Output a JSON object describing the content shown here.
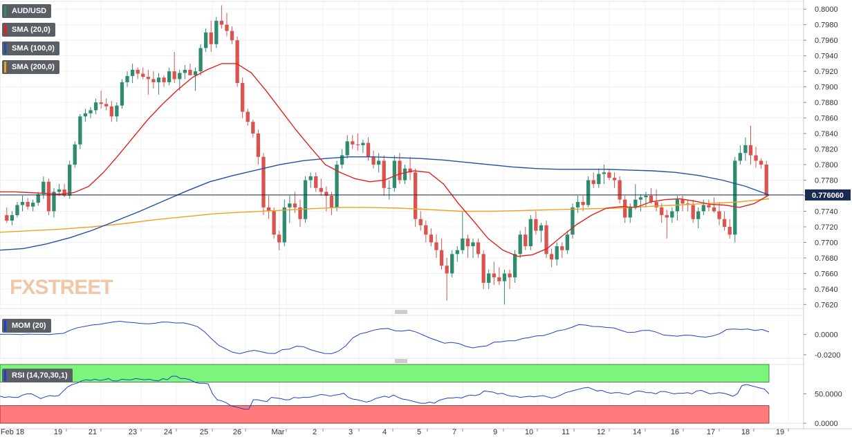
{
  "chart_data": {
    "type": "candlestick",
    "symbol": "AUD/USD",
    "price_axis": {
      "ticks": [
        "0.8000",
        "0.7980",
        "0.7960",
        "0.7940",
        "0.7920",
        "0.7900",
        "0.7880",
        "0.7860",
        "0.7840",
        "0.7820",
        "0.7800",
        "0.7780",
        "0.7760",
        "0.7740",
        "0.7720",
        "0.7700",
        "0.7680",
        "0.7660",
        "0.7640",
        "0.7620"
      ],
      "range": [
        0.7615,
        0.801
      ]
    },
    "last_price": "0.776060",
    "last_price_value": 0.7761,
    "x_axis_labels": [
      "Feb 18",
      "19",
      "21",
      "23",
      "24",
      "25",
      "26",
      "Mar",
      "2",
      "3",
      "4",
      "5",
      "7",
      "9",
      "10",
      "11",
      "12",
      "14",
      "16",
      "17",
      "18",
      "19"
    ],
    "indicators": {
      "sma20_label": "SMA (20,0)",
      "sma100_label": "SMA (100,0)",
      "sma200_label": "SMA (200,0)",
      "mom_label": "MOM (20)",
      "rsi_label": "RSI (14,70,30,1)"
    },
    "colors": {
      "up": "#2e8b6e",
      "down": "#d9534f",
      "sma20": "#e0221b",
      "sma100": "#1f4fa8",
      "sma200": "#f0a020",
      "mom_line": "#1d3fd1",
      "rsi_line": "#1d3fd1",
      "overbought": "#7cf57c",
      "oversold": "#ff7b7b",
      "label_bg": "#5a5f66"
    },
    "candles": [
      [
        0.7735,
        0.7745,
        0.7725,
        0.7728
      ],
      [
        0.7728,
        0.774,
        0.7722,
        0.7735
      ],
      [
        0.7735,
        0.7752,
        0.7732,
        0.7748
      ],
      [
        0.7748,
        0.776,
        0.774,
        0.7752
      ],
      [
        0.7752,
        0.7757,
        0.7742,
        0.7746
      ],
      [
        0.7746,
        0.7755,
        0.774,
        0.7751
      ],
      [
        0.7751,
        0.7765,
        0.7747,
        0.7762
      ],
      [
        0.7762,
        0.7785,
        0.7756,
        0.7778
      ],
      [
        0.7778,
        0.7782,
        0.7735,
        0.774
      ],
      [
        0.774,
        0.777,
        0.7732,
        0.7765
      ],
      [
        0.7765,
        0.7775,
        0.776,
        0.7768
      ],
      [
        0.7768,
        0.7775,
        0.7758,
        0.776
      ],
      [
        0.776,
        0.7805,
        0.7756,
        0.78
      ],
      [
        0.78,
        0.783,
        0.7796,
        0.7826
      ],
      [
        0.7826,
        0.7865,
        0.782,
        0.7862
      ],
      [
        0.7862,
        0.7872,
        0.7855,
        0.7866
      ],
      [
        0.7866,
        0.7874,
        0.786,
        0.787
      ],
      [
        0.787,
        0.7885,
        0.7865,
        0.788
      ],
      [
        0.788,
        0.7895,
        0.7872,
        0.7878
      ],
      [
        0.7878,
        0.7885,
        0.787,
        0.7875
      ],
      [
        0.7875,
        0.7882,
        0.7855,
        0.7862
      ],
      [
        0.7862,
        0.788,
        0.7855,
        0.7876
      ],
      [
        0.7876,
        0.791,
        0.7872,
        0.7906
      ],
      [
        0.7906,
        0.792,
        0.79,
        0.7914
      ],
      [
        0.7914,
        0.793,
        0.7905,
        0.7922
      ],
      [
        0.7922,
        0.7925,
        0.791,
        0.7917
      ],
      [
        0.7917,
        0.7925,
        0.791,
        0.7913
      ],
      [
        0.7913,
        0.7922,
        0.789,
        0.791
      ],
      [
        0.791,
        0.792,
        0.7898,
        0.7906
      ],
      [
        0.7906,
        0.7918,
        0.789,
        0.7912
      ],
      [
        0.7912,
        0.7915,
        0.79,
        0.7906
      ],
      [
        0.7906,
        0.7925,
        0.7902,
        0.792
      ],
      [
        0.792,
        0.7945,
        0.7905,
        0.791
      ],
      [
        0.791,
        0.7922,
        0.7895,
        0.7918
      ],
      [
        0.7918,
        0.7928,
        0.791,
        0.7922
      ],
      [
        0.7922,
        0.793,
        0.7915,
        0.7915
      ],
      [
        0.7915,
        0.7925,
        0.7895,
        0.792
      ],
      [
        0.792,
        0.7955,
        0.7915,
        0.795
      ],
      [
        0.795,
        0.7975,
        0.7945,
        0.797
      ],
      [
        0.797,
        0.7985,
        0.7945,
        0.7955
      ],
      [
        0.7955,
        0.799,
        0.795,
        0.7985
      ],
      [
        0.7985,
        0.8005,
        0.7975,
        0.798
      ],
      [
        0.798,
        0.7995,
        0.7965,
        0.7972
      ],
      [
        0.7972,
        0.7978,
        0.7955,
        0.796
      ],
      [
        0.796,
        0.7965,
        0.79,
        0.7905
      ],
      [
        0.7905,
        0.7912,
        0.786,
        0.7868
      ],
      [
        0.7868,
        0.7872,
        0.785,
        0.7855
      ],
      [
        0.7855,
        0.7858,
        0.7835,
        0.784
      ],
      [
        0.784,
        0.7845,
        0.78,
        0.781
      ],
      [
        0.781,
        0.7815,
        0.7735,
        0.7745
      ],
      [
        0.7745,
        0.776,
        0.773,
        0.774
      ],
      [
        0.774,
        0.7745,
        0.7705,
        0.771
      ],
      [
        0.771,
        0.7715,
        0.769,
        0.77
      ],
      [
        0.77,
        0.7755,
        0.7695,
        0.7745
      ],
      [
        0.7745,
        0.776,
        0.7725,
        0.775
      ],
      [
        0.775,
        0.7765,
        0.7738,
        0.7745
      ],
      [
        0.7745,
        0.7755,
        0.772,
        0.773
      ],
      [
        0.773,
        0.7785,
        0.7725,
        0.778
      ],
      [
        0.778,
        0.779,
        0.777,
        0.7785
      ],
      [
        0.7785,
        0.779,
        0.7765,
        0.777
      ],
      [
        0.777,
        0.7782,
        0.776,
        0.7765
      ],
      [
        0.7765,
        0.7772,
        0.774,
        0.776
      ],
      [
        0.776,
        0.7765,
        0.7735,
        0.7745
      ],
      [
        0.7745,
        0.7805,
        0.774,
        0.78
      ],
      [
        0.78,
        0.782,
        0.7795,
        0.7812
      ],
      [
        0.7812,
        0.7838,
        0.7808,
        0.783
      ],
      [
        0.783,
        0.7838,
        0.782,
        0.7826
      ],
      [
        0.7826,
        0.784,
        0.7818,
        0.7825
      ],
      [
        0.7825,
        0.7832,
        0.7815,
        0.7828
      ],
      [
        0.7828,
        0.7835,
        0.7805,
        0.781
      ],
      [
        0.781,
        0.7818,
        0.7795,
        0.78
      ],
      [
        0.78,
        0.7815,
        0.779,
        0.7805
      ],
      [
        0.7805,
        0.7812,
        0.776,
        0.777
      ],
      [
        0.777,
        0.778,
        0.7755,
        0.777
      ],
      [
        0.777,
        0.7812,
        0.7765,
        0.7805
      ],
      [
        0.7805,
        0.7815,
        0.7775,
        0.778
      ],
      [
        0.778,
        0.78,
        0.7775,
        0.7795
      ],
      [
        0.7795,
        0.781,
        0.778,
        0.779
      ],
      [
        0.779,
        0.7795,
        0.772,
        0.773
      ],
      [
        0.773,
        0.774,
        0.7715,
        0.7722
      ],
      [
        0.7722,
        0.7728,
        0.77,
        0.771
      ],
      [
        0.771,
        0.7718,
        0.7695,
        0.77
      ],
      [
        0.77,
        0.771,
        0.768,
        0.769
      ],
      [
        0.769,
        0.7705,
        0.7665,
        0.767
      ],
      [
        0.767,
        0.768,
        0.7625,
        0.766
      ],
      [
        0.766,
        0.769,
        0.7655,
        0.7685
      ],
      [
        0.7685,
        0.7695,
        0.7675,
        0.769
      ],
      [
        0.769,
        0.774,
        0.7685,
        0.7705
      ],
      [
        0.7705,
        0.771,
        0.768,
        0.7695
      ],
      [
        0.7695,
        0.7705,
        0.768,
        0.77
      ],
      [
        0.77,
        0.7705,
        0.768,
        0.7685
      ],
      [
        0.7685,
        0.769,
        0.764,
        0.7648
      ],
      [
        0.7648,
        0.7665,
        0.764,
        0.766
      ],
      [
        0.766,
        0.7675,
        0.7645,
        0.7655
      ],
      [
        0.7655,
        0.7668,
        0.7645,
        0.765
      ],
      [
        0.765,
        0.7665,
        0.762,
        0.766
      ],
      [
        0.766,
        0.7665,
        0.764,
        0.7655
      ],
      [
        0.7655,
        0.769,
        0.7648,
        0.7685
      ],
      [
        0.7685,
        0.7715,
        0.768,
        0.771
      ],
      [
        0.771,
        0.772,
        0.769,
        0.7695
      ],
      [
        0.7695,
        0.7735,
        0.769,
        0.773
      ],
      [
        0.773,
        0.774,
        0.771,
        0.7715
      ],
      [
        0.7715,
        0.7725,
        0.77,
        0.7722
      ],
      [
        0.7722,
        0.7728,
        0.768,
        0.7685
      ],
      [
        0.7685,
        0.7692,
        0.7668,
        0.7678
      ],
      [
        0.7678,
        0.77,
        0.767,
        0.7695
      ],
      [
        0.7695,
        0.77,
        0.768,
        0.769
      ],
      [
        0.769,
        0.7715,
        0.7685,
        0.771
      ],
      [
        0.771,
        0.775,
        0.7705,
        0.7745
      ],
      [
        0.7745,
        0.776,
        0.7738,
        0.7752
      ],
      [
        0.7752,
        0.776,
        0.774,
        0.7748
      ],
      [
        0.7748,
        0.7785,
        0.7745,
        0.778
      ],
      [
        0.778,
        0.779,
        0.777,
        0.7775
      ],
      [
        0.7775,
        0.7795,
        0.777,
        0.7788
      ],
      [
        0.7788,
        0.78,
        0.7775,
        0.779
      ],
      [
        0.779,
        0.7795,
        0.778,
        0.7783
      ],
      [
        0.7783,
        0.779,
        0.777,
        0.778
      ],
      [
        0.778,
        0.7785,
        0.775,
        0.7755
      ],
      [
        0.7755,
        0.776,
        0.7725,
        0.7732
      ],
      [
        0.7732,
        0.775,
        0.7725,
        0.7745
      ],
      [
        0.7745,
        0.7775,
        0.7742,
        0.7755
      ],
      [
        0.7755,
        0.7762,
        0.774,
        0.7758
      ],
      [
        0.7758,
        0.7765,
        0.7745,
        0.776
      ],
      [
        0.776,
        0.777,
        0.775,
        0.7752
      ],
      [
        0.7752,
        0.7768,
        0.774,
        0.7745
      ],
      [
        0.7745,
        0.775,
        0.7725,
        0.7735
      ],
      [
        0.7735,
        0.7742,
        0.7705,
        0.7732
      ],
      [
        0.7732,
        0.7745,
        0.7725,
        0.774
      ],
      [
        0.774,
        0.776,
        0.7728,
        0.7755
      ],
      [
        0.7755,
        0.776,
        0.774,
        0.775
      ],
      [
        0.775,
        0.7755,
        0.774,
        0.7748
      ],
      [
        0.7748,
        0.7755,
        0.7725,
        0.773
      ],
      [
        0.773,
        0.7745,
        0.7718,
        0.774
      ],
      [
        0.774,
        0.7755,
        0.7735,
        0.7748
      ],
      [
        0.7748,
        0.7755,
        0.774,
        0.7745
      ],
      [
        0.7745,
        0.7758,
        0.7738,
        0.774
      ],
      [
        0.774,
        0.7752,
        0.7722,
        0.773
      ],
      [
        0.773,
        0.774,
        0.7715,
        0.772
      ],
      [
        0.772,
        0.773,
        0.7705,
        0.771
      ],
      [
        0.771,
        0.781,
        0.77,
        0.7805
      ],
      [
        0.7805,
        0.7825,
        0.78,
        0.7815
      ],
      [
        0.7815,
        0.7835,
        0.7805,
        0.7825
      ],
      [
        0.7825,
        0.785,
        0.78,
        0.7812
      ],
      [
        0.7812,
        0.7823,
        0.7796,
        0.7805
      ],
      [
        0.7805,
        0.7808,
        0.7795,
        0.78
      ],
      [
        0.78,
        0.7805,
        0.7758,
        0.7761
      ]
    ],
    "sma20": [
      0.7765,
      0.7765,
      0.7764,
      0.7763,
      0.7762,
      0.7764,
      0.7772,
      0.779,
      0.7812,
      0.7835,
      0.7858,
      0.7878,
      0.7896,
      0.7912,
      0.7922,
      0.793,
      0.793,
      0.7918,
      0.7895,
      0.787,
      0.7845,
      0.7822,
      0.78,
      0.779,
      0.7782,
      0.7778,
      0.778,
      0.7788,
      0.7792,
      0.779,
      0.7775,
      0.775,
      0.7728,
      0.7705,
      0.769,
      0.7682,
      0.7684,
      0.7692,
      0.7708,
      0.7723,
      0.7735,
      0.7744,
      0.7746,
      0.7745,
      0.7752,
      0.7755,
      0.7756,
      0.7753,
      0.7749,
      0.7748,
      0.7745,
      0.775,
      0.7761
    ],
    "sma100": [
      0.769,
      0.7692,
      0.7698,
      0.7706,
      0.7716,
      0.7728,
      0.774,
      0.7753,
      0.7766,
      0.7778,
      0.7786,
      0.7793,
      0.78,
      0.7805,
      0.7808,
      0.781,
      0.781,
      0.7809,
      0.7808,
      0.7806,
      0.7803,
      0.78,
      0.7797,
      0.7795,
      0.7794,
      0.7794,
      0.7794,
      0.7793,
      0.7792,
      0.779,
      0.7786,
      0.778,
      0.7772,
      0.7761
    ],
    "sma200": [
      0.7713,
      0.7715,
      0.7717,
      0.772,
      0.7724,
      0.7729,
      0.7733,
      0.7737,
      0.7739,
      0.7741,
      0.7743,
      0.7745,
      0.7745,
      0.7744,
      0.7742,
      0.774,
      0.774,
      0.7741,
      0.7742,
      0.7743,
      0.7744,
      0.7746,
      0.7748,
      0.775,
      0.7752,
      0.7756
    ],
    "mom": {
      "ticks": [
        "0.0000",
        "-0.0200"
      ],
      "range": [
        -0.0235,
        0.019
      ],
      "values": [
        0.0002,
        0.0003,
        0.0002,
        0.0,
        0.0004,
        0.0002,
        0.0002,
        0.0,
        0.0006,
        0.0012,
        0.0044,
        0.0068,
        0.008,
        0.0094,
        0.01,
        0.0112,
        0.0124,
        0.0132,
        0.0122,
        0.0118,
        0.011,
        0.0106,
        0.0112,
        0.0124,
        0.0122,
        0.0114,
        0.0116,
        0.01,
        0.0078,
        0.0026,
        -0.0044,
        -0.0106,
        -0.0142,
        -0.0176,
        -0.019,
        -0.017,
        -0.0156,
        -0.017,
        -0.0186,
        -0.0188,
        -0.015,
        -0.0144,
        -0.0116,
        -0.012,
        -0.015,
        -0.017,
        -0.0188,
        -0.019,
        -0.0164,
        -0.0112,
        -0.0034,
        0.0006,
        0.0022,
        0.0044,
        0.0056,
        0.006,
        0.0038,
        0.0034,
        0.0044,
        0.0024,
        -0.0006,
        -0.0036,
        -0.006,
        -0.0086,
        -0.0078,
        -0.0088,
        -0.0116,
        -0.0132,
        -0.012,
        -0.0112,
        -0.0076,
        -0.0072,
        -0.0062,
        -0.0062,
        -0.004,
        -0.003,
        -0.0014,
        -0.001,
        0.001,
        0.0036,
        0.0048,
        0.007,
        0.0098,
        0.0094,
        0.008,
        0.0078,
        0.007,
        0.0066,
        0.0042,
        0.002,
        0.0024,
        0.004,
        0.0042,
        0.0024,
        -0.0004,
        -0.001,
        -0.0016,
        -0.0006,
        -0.0008,
        -0.002,
        -0.0026,
        -0.0014,
        0.0008,
        0.005,
        0.0054,
        0.005,
        0.0054,
        0.004,
        0.005,
        0.0026
      ]
    },
    "rsi": {
      "ticks": [
        "50.0000",
        "0.0000"
      ],
      "range": [
        0,
        100
      ],
      "overbought": 70,
      "oversold": 30,
      "values": [
        46,
        44,
        45,
        44,
        44,
        48,
        50,
        50,
        46,
        42,
        45,
        47,
        46,
        47,
        55,
        62,
        66,
        68,
        72,
        74,
        73,
        75,
        73,
        74,
        76,
        72,
        72,
        75,
        74,
        74,
        76,
        75,
        74,
        75,
        73,
        72,
        76,
        74,
        80,
        80,
        76,
        76,
        74,
        70,
        68,
        68,
        67,
        50,
        40,
        38,
        35,
        30,
        28,
        26,
        24,
        24,
        40,
        40,
        38,
        37,
        44,
        43,
        42,
        40,
        40,
        44,
        43,
        44,
        44,
        45,
        47,
        49,
        48,
        46,
        48,
        49,
        51,
        44,
        41,
        40,
        38,
        36,
        38,
        42,
        44,
        46,
        44,
        48,
        44,
        41,
        40,
        38,
        36,
        34,
        34,
        36,
        34,
        39,
        41,
        43,
        43,
        44,
        43,
        46,
        48,
        47,
        49,
        55,
        54,
        53,
        50,
        51,
        48,
        46,
        46,
        44,
        45,
        46,
        45,
        46,
        47,
        45,
        43,
        45,
        48,
        52,
        54,
        56,
        58,
        60,
        61,
        58,
        55,
        56,
        53,
        51,
        52,
        52,
        50,
        49,
        53,
        55,
        54,
        52,
        52,
        50,
        54,
        54,
        52,
        50,
        51,
        51,
        52,
        50,
        55,
        56,
        53,
        50,
        51,
        52,
        51,
        49,
        46,
        50,
        64,
        66,
        64,
        62,
        60,
        58,
        50
      ]
    },
    "watermark": "FXSTREET"
  }
}
